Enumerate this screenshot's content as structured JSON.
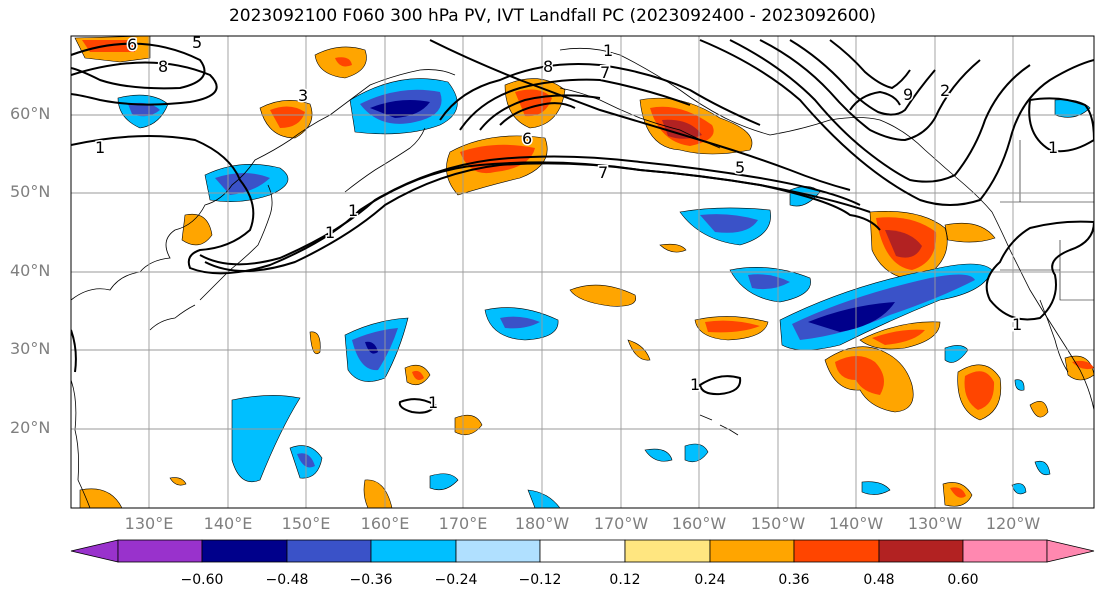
{
  "title": "2023092100 F060 300 hPa PV, IVT Landfall PC (2023092400 - 2023092600)",
  "map": {
    "lat_labels": [
      "60°N",
      "50°N",
      "40°N",
      "30°N",
      "20°N"
    ],
    "lon_labels": [
      "130°E",
      "140°E",
      "150°E",
      "160°E",
      "170°E",
      "180°W",
      "170°W",
      "160°W",
      "150°W",
      "140°W",
      "130°W",
      "120°W"
    ],
    "contour_labels": [
      "6",
      "5",
      "8",
      "3",
      "1",
      "1",
      "6",
      "1",
      "7",
      "5",
      "8",
      "7",
      "1",
      "1",
      "1",
      "9",
      "2",
      "1",
      "1"
    ]
  },
  "colorbar": {
    "tick_labels": [
      "−0.60",
      "−0.48",
      "−0.36",
      "−0.24",
      "−0.12",
      "0.12",
      "0.24",
      "0.36",
      "0.48",
      "0.60"
    ],
    "colors": [
      "#9932cc",
      "#00008b",
      "#3a52c8",
      "#00bfff",
      "#b0e0ff",
      "#ffffff",
      "#ffe680",
      "#ffa500",
      "#ff4500",
      "#b22222",
      "#ff88b0"
    ]
  }
}
